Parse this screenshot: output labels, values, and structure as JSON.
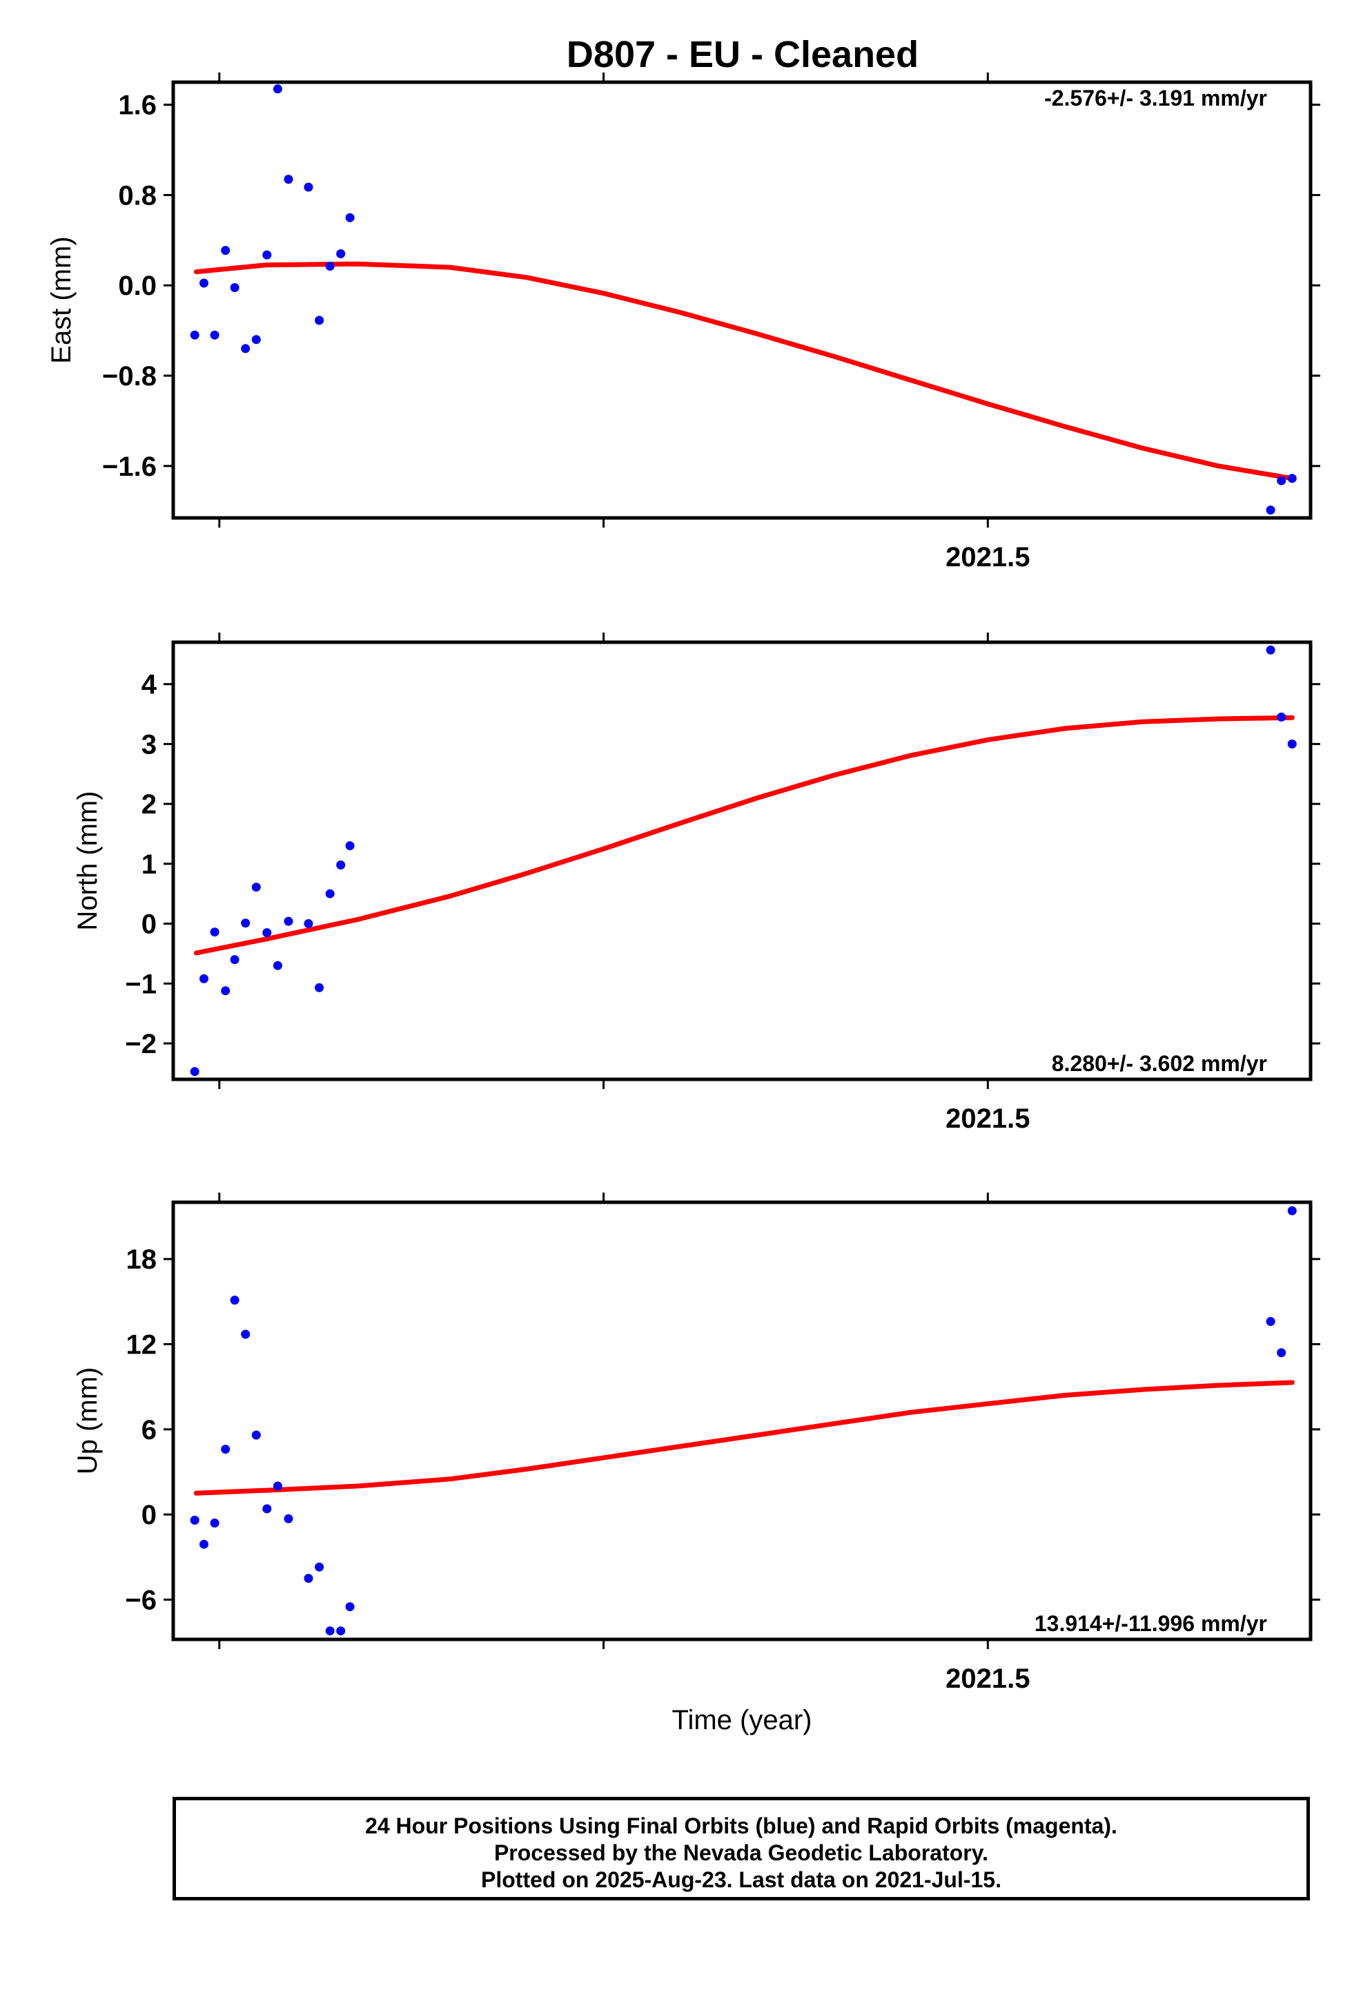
{
  "title": "D807  - EU - Cleaned",
  "colors": {
    "points": "#0000ff",
    "fit": "#ff0000",
    "frame": "#000000"
  },
  "chart_data": [
    {
      "type": "scatter",
      "ylabel": "East (mm)",
      "xlabel": "",
      "rate": "-2.576+/- 3.191 mm/yr",
      "rate_position": "top-right",
      "ylim": [
        -2.06,
        1.8
      ],
      "xlim": [
        2020.97,
        2021.71
      ],
      "yticks": [
        "1.6",
        "0.8",
        "0.0",
        "−0.8",
        "−1.6"
      ],
      "yticks_values": [
        1.6,
        0.8,
        0.0,
        -0.8,
        -1.6
      ],
      "xticks_values": [
        2021.0,
        2021.25,
        2021.5
      ],
      "xtick_labels": [
        {
          "value": 2021.5,
          "label": "2021.5"
        }
      ],
      "points": [
        [
          2020.984,
          -0.44
        ],
        [
          2020.99,
          0.02
        ],
        [
          2020.997,
          -0.44
        ],
        [
          2021.004,
          0.31
        ],
        [
          2021.01,
          -0.02
        ],
        [
          2021.017,
          -0.56
        ],
        [
          2021.024,
          -0.48
        ],
        [
          2021.031,
          0.27
        ],
        [
          2021.038,
          1.74
        ],
        [
          2021.045,
          0.94
        ],
        [
          2021.058,
          0.87
        ],
        [
          2021.065,
          -0.31
        ],
        [
          2021.072,
          0.17
        ],
        [
          2021.079,
          0.28
        ],
        [
          2021.085,
          0.6
        ],
        [
          2021.684,
          -1.99
        ],
        [
          2021.691,
          -1.73
        ],
        [
          2021.698,
          -1.71
        ]
      ],
      "fit": [
        [
          2020.985,
          0.12
        ],
        [
          2021.03,
          0.18
        ],
        [
          2021.09,
          0.19
        ],
        [
          2021.15,
          0.16
        ],
        [
          2021.2,
          0.07
        ],
        [
          2021.25,
          -0.07
        ],
        [
          2021.3,
          -0.24
        ],
        [
          2021.35,
          -0.43
        ],
        [
          2021.4,
          -0.63
        ],
        [
          2021.45,
          -0.84
        ],
        [
          2021.5,
          -1.05
        ],
        [
          2021.55,
          -1.25
        ],
        [
          2021.6,
          -1.44
        ],
        [
          2021.65,
          -1.6
        ],
        [
          2021.698,
          -1.71
        ]
      ]
    },
    {
      "type": "scatter",
      "ylabel": "North (mm)",
      "xlabel": "",
      "rate": "8.280+/- 3.602 mm/yr",
      "rate_position": "bottom-right",
      "ylim": [
        -2.6,
        4.7
      ],
      "xlim": [
        2020.97,
        2021.71
      ],
      "yticks": [
        "4",
        "3",
        "2",
        "1",
        "0",
        "−1",
        "−2"
      ],
      "yticks_values": [
        4,
        3,
        2,
        1,
        0,
        -1,
        -2
      ],
      "xticks_values": [
        2021.0,
        2021.25,
        2021.5
      ],
      "xtick_labels": [
        {
          "value": 2021.5,
          "label": "2021.5"
        }
      ],
      "points": [
        [
          2020.984,
          -2.47
        ],
        [
          2020.99,
          -0.92
        ],
        [
          2020.997,
          -0.14
        ],
        [
          2021.004,
          -1.12
        ],
        [
          2021.01,
          -0.6
        ],
        [
          2021.017,
          0.01
        ],
        [
          2021.024,
          0.61
        ],
        [
          2021.031,
          -0.15
        ],
        [
          2021.038,
          -0.7
        ],
        [
          2021.045,
          0.04
        ],
        [
          2021.058,
          0.0
        ],
        [
          2021.065,
          -1.07
        ],
        [
          2021.072,
          0.5
        ],
        [
          2021.079,
          0.98
        ],
        [
          2021.085,
          1.3
        ],
        [
          2021.684,
          4.57
        ],
        [
          2021.691,
          3.45
        ],
        [
          2021.698,
          3.0
        ]
      ],
      "fit": [
        [
          2020.985,
          -0.49
        ],
        [
          2021.03,
          -0.26
        ],
        [
          2021.09,
          0.07
        ],
        [
          2021.15,
          0.46
        ],
        [
          2021.2,
          0.84
        ],
        [
          2021.25,
          1.25
        ],
        [
          2021.3,
          1.68
        ],
        [
          2021.35,
          2.1
        ],
        [
          2021.4,
          2.48
        ],
        [
          2021.45,
          2.81
        ],
        [
          2021.5,
          3.07
        ],
        [
          2021.55,
          3.26
        ],
        [
          2021.6,
          3.37
        ],
        [
          2021.65,
          3.42
        ],
        [
          2021.698,
          3.44
        ]
      ]
    },
    {
      "type": "scatter",
      "ylabel": "Up (mm)",
      "xlabel": "Time (year)",
      "rate": "13.914+/-11.996 mm/yr",
      "rate_position": "bottom-right",
      "ylim": [
        -8.8,
        22.0
      ],
      "xlim": [
        2020.97,
        2021.71
      ],
      "yticks": [
        "18",
        "12",
        "6",
        "0",
        "−6"
      ],
      "yticks_values": [
        18,
        12,
        6,
        0,
        -6
      ],
      "xticks_values": [
        2021.0,
        2021.25,
        2021.5
      ],
      "xtick_labels": [
        {
          "value": 2021.5,
          "label": "2021.5"
        }
      ],
      "points": [
        [
          2020.984,
          -0.4
        ],
        [
          2020.99,
          -2.1
        ],
        [
          2020.997,
          -0.6
        ],
        [
          2021.004,
          4.6
        ],
        [
          2021.01,
          15.1
        ],
        [
          2021.017,
          12.7
        ],
        [
          2021.024,
          5.6
        ],
        [
          2021.031,
          0.4
        ],
        [
          2021.038,
          2.0
        ],
        [
          2021.045,
          -0.3
        ],
        [
          2021.058,
          -4.5
        ],
        [
          2021.065,
          -3.7
        ],
        [
          2021.072,
          -8.2
        ],
        [
          2021.079,
          -8.2
        ],
        [
          2021.085,
          -6.5
        ],
        [
          2021.684,
          13.6
        ],
        [
          2021.691,
          11.4
        ],
        [
          2021.698,
          21.4
        ]
      ],
      "fit": [
        [
          2020.985,
          1.5
        ],
        [
          2021.03,
          1.7
        ],
        [
          2021.09,
          2.0
        ],
        [
          2021.15,
          2.5
        ],
        [
          2021.2,
          3.2
        ],
        [
          2021.25,
          4.0
        ],
        [
          2021.3,
          4.8
        ],
        [
          2021.35,
          5.6
        ],
        [
          2021.4,
          6.4
        ],
        [
          2021.45,
          7.2
        ],
        [
          2021.5,
          7.8
        ],
        [
          2021.55,
          8.4
        ],
        [
          2021.6,
          8.8
        ],
        [
          2021.65,
          9.1
        ],
        [
          2021.698,
          9.3
        ]
      ]
    }
  ],
  "footer": {
    "line1": "24 Hour Positions Using Final Orbits (blue) and Rapid Orbits (magenta).",
    "line2": "Processed by the Nevada Geodetic Laboratory.",
    "line3": "Plotted on 2025-Aug-23. Last data on 2021-Jul-15."
  }
}
